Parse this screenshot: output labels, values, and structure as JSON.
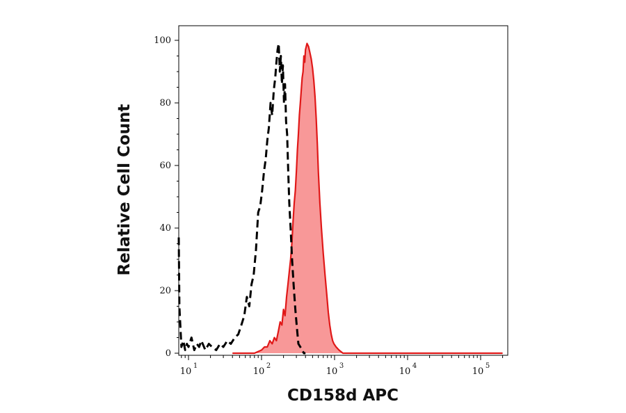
{
  "chart_data": {
    "type": "area",
    "title": "",
    "xlabel": "CD158d APC",
    "ylabel": "Relative Cell Count",
    "x_scale": "log",
    "xlim": [
      7,
      200000
    ],
    "ylim": [
      0,
      100
    ],
    "y_ticks": [
      "0",
      "20",
      "40",
      "60",
      "80",
      "100"
    ],
    "x_ticks": [
      {
        "value": 10,
        "base": "10",
        "exp": "1"
      },
      {
        "value": 100,
        "base": "10",
        "exp": "2"
      },
      {
        "value": 1000,
        "base": "10",
        "exp": "3"
      },
      {
        "value": 10000,
        "base": "10",
        "exp": "4"
      },
      {
        "value": 100000,
        "base": "10",
        "exp": "5"
      }
    ],
    "grid": false,
    "legend": "none",
    "series": [
      {
        "style": "dashed",
        "color": "#000000",
        "fill": "none",
        "x": [
          7,
          7.5,
          8,
          8.5,
          9,
          9.5,
          10,
          11,
          12,
          13,
          14,
          15,
          17,
          19,
          21,
          24,
          27,
          30,
          34,
          38,
          43,
          48,
          53,
          58,
          63,
          68,
          73,
          78,
          84,
          90,
          96,
          102,
          108,
          114,
          120,
          126,
          133,
          140,
          147,
          154,
          160,
          166,
          172,
          178,
          184,
          190,
          196,
          203,
          210,
          217,
          224,
          232,
          240,
          250,
          262,
          275,
          290,
          305,
          320,
          340,
          360,
          380,
          400
        ],
        "y": [
          37,
          15,
          2,
          4,
          1,
          3,
          2,
          5,
          1,
          3,
          2,
          4,
          1,
          3,
          2,
          1,
          3,
          2,
          4,
          3,
          5,
          6,
          9,
          12,
          18,
          15,
          22,
          25,
          33,
          45,
          47,
          52,
          58,
          62,
          68,
          72,
          80,
          76,
          84,
          88,
          93,
          97,
          99,
          90,
          95,
          86,
          92,
          80,
          86,
          74,
          70,
          58,
          48,
          40,
          30,
          22,
          14,
          8,
          3,
          2,
          1,
          0,
          0
        ]
      },
      {
        "style": "solid",
        "color": "#e01818",
        "fill": "#f89898",
        "x": [
          40,
          60,
          80,
          100,
          110,
          120,
          130,
          140,
          150,
          160,
          170,
          180,
          190,
          200,
          210,
          220,
          230,
          240,
          250,
          260,
          270,
          280,
          290,
          300,
          310,
          320,
          330,
          340,
          350,
          360,
          370,
          380,
          390,
          400,
          420,
          440,
          460,
          480,
          500,
          520,
          540,
          560,
          580,
          600,
          630,
          660,
          700,
          740,
          780,
          820,
          860,
          900,
          940,
          980,
          1050,
          1150,
          1300,
          1600,
          2000,
          5000,
          200000
        ],
        "y": [
          0,
          0,
          0,
          1,
          2,
          2,
          4,
          3,
          5,
          4,
          7,
          10,
          9,
          14,
          12,
          18,
          22,
          26,
          30,
          35,
          42,
          48,
          52,
          58,
          65,
          70,
          76,
          80,
          84,
          88,
          90,
          95,
          93,
          97,
          99,
          98,
          96,
          94,
          91,
          87,
          82,
          75,
          67,
          58,
          48,
          40,
          32,
          25,
          19,
          13,
          9,
          6,
          4,
          3,
          2,
          1,
          0,
          0,
          0,
          0,
          0
        ]
      }
    ]
  }
}
